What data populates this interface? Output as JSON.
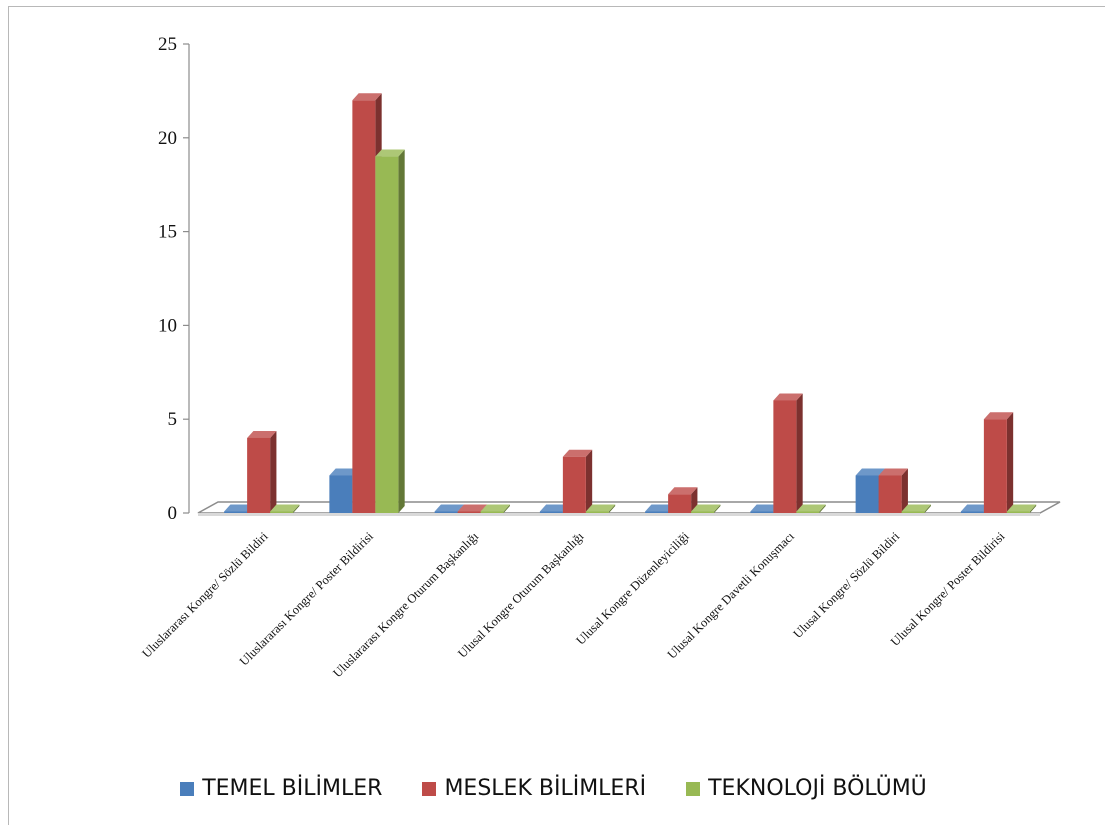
{
  "chart_data": {
    "type": "bar",
    "title": "",
    "xlabel": "",
    "ylabel": "",
    "ylim": [
      0,
      25
    ],
    "yticks": [
      0,
      5,
      10,
      15,
      20,
      25
    ],
    "categories": [
      "Uluslararası Kongre/ Sözlü Bildiri",
      "Uluslararası Kongre/ Poster Bildirisi",
      "Uluslararası Kongre Oturum Başkanlığı",
      "Ulusal  Kongre Oturum Başkanlığı",
      "Ulusal Kongre Düzenleyiciliği",
      "Ulusal Kongre Davetli Konuşmacı",
      "Ulusal Kongre/ Sözlü Bildiri",
      "Ulusal Kongre/ Poster Bildirisi"
    ],
    "series": [
      {
        "name": "TEMEL BİLİMLER",
        "color": "#4a7ebb",
        "values": [
          0,
          2,
          0,
          0,
          0,
          0,
          2,
          0
        ]
      },
      {
        "name": "MESLEK BİLİMLERİ",
        "color": "#be4b48",
        "values": [
          4,
          22,
          0,
          3,
          1,
          6,
          2,
          5
        ]
      },
      {
        "name": "TEKNOLOJİ BÖLÜMÜ",
        "color": "#98b954",
        "values": [
          0,
          19,
          0,
          0,
          0,
          0,
          0,
          0
        ]
      }
    ],
    "legend_position": "bottom",
    "grid": false,
    "style": "3d-clustered-column"
  }
}
